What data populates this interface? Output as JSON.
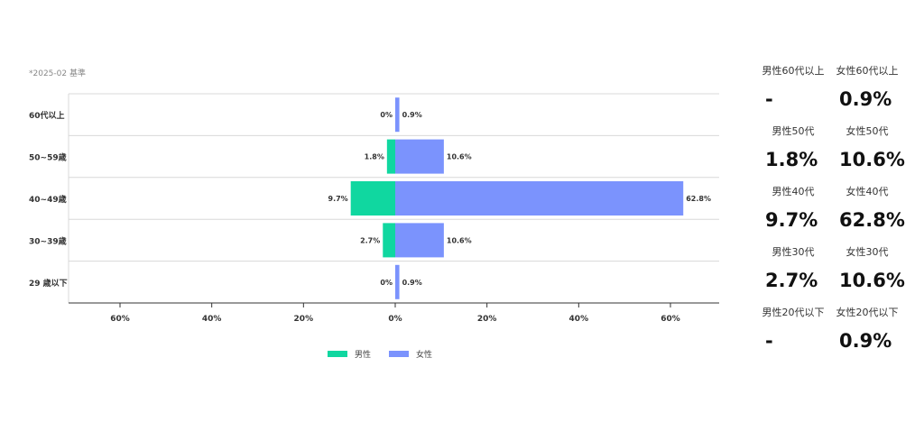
{
  "note": "*2025-02 基準",
  "colors": {
    "male": "#10d7a0",
    "female": "#7b93fd",
    "grid": "#d8d8d8",
    "axis": "#333333"
  },
  "chart_data": {
    "type": "bar",
    "orientation": "horizontal-diverging",
    "categories": [
      "60代以上",
      "50~59歳",
      "40~49歳",
      "30~39歳",
      "29 歳以下"
    ],
    "series": [
      {
        "name": "男性",
        "values": [
          0,
          1.8,
          9.7,
          2.7,
          0
        ],
        "labels": [
          "0%",
          "1.8%",
          "9.7%",
          "2.7%",
          "0%"
        ],
        "side": "left"
      },
      {
        "name": "女性",
        "values": [
          0.9,
          10.6,
          62.8,
          10.6,
          0.9
        ],
        "labels": [
          "0.9%",
          "10.6%",
          "62.8%",
          "10.6%",
          "0.9%"
        ],
        "side": "right"
      }
    ],
    "xlim": [
      -70,
      70
    ],
    "x_ticks": [
      -60,
      -40,
      -20,
      0,
      20,
      40,
      60
    ],
    "x_tick_labels": [
      "60%",
      "40%",
      "20%",
      "0%",
      "20%",
      "40%",
      "60%"
    ],
    "legend_position": "bottom-center",
    "grid": true
  },
  "legend": {
    "male": "男性",
    "female": "女性"
  },
  "stats": [
    {
      "male_label": "男性60代以上",
      "male_value": "-",
      "female_label": "女性60代以上",
      "female_value": "0.9%"
    },
    {
      "male_label": "男性50代",
      "male_value": "1.8%",
      "female_label": "女性50代",
      "female_value": "10.6%"
    },
    {
      "male_label": "男性40代",
      "male_value": "9.7%",
      "female_label": "女性40代",
      "female_value": "62.8%"
    },
    {
      "male_label": "男性30代",
      "male_value": "2.7%",
      "female_label": "女性30代",
      "female_value": "10.6%"
    },
    {
      "male_label": "男性20代以下",
      "male_value": "-",
      "female_label": "女性20代以下",
      "female_value": "0.9%"
    }
  ]
}
